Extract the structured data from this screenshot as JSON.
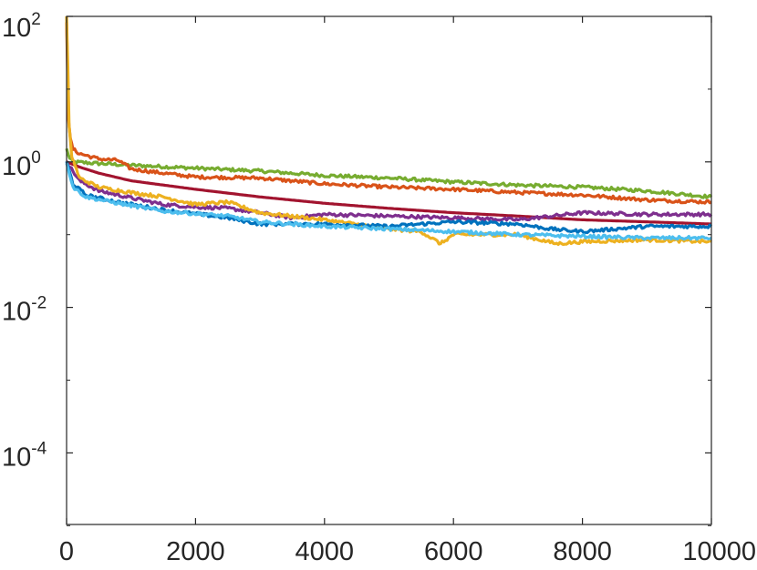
{
  "chart_data": {
    "type": "line",
    "title": "",
    "xlabel": "",
    "ylabel": "",
    "xlim": [
      0,
      10000
    ],
    "ylim_log10": [
      -5,
      2
    ],
    "yscale": "log",
    "grid": false,
    "box": true,
    "x_ticks": [
      0,
      2000,
      4000,
      6000,
      8000,
      10000
    ],
    "x_tick_labels": [
      "0",
      "2000",
      "4000",
      "6000",
      "8000",
      "10000"
    ],
    "y_ticks_log10": [
      -4,
      -2,
      0,
      2
    ],
    "y_tick_labels": [
      {
        "base": "10",
        "exp": "-4"
      },
      {
        "base": "10",
        "exp": "-2"
      },
      {
        "base": "10",
        "exp": "0"
      },
      {
        "base": "10",
        "exp": "2"
      }
    ],
    "series": [
      {
        "color": "#77AC30",
        "points": [
          [
            0,
            1.5
          ],
          [
            50,
            1.1
          ],
          [
            100,
            1.0
          ],
          [
            500,
            0.95
          ],
          [
            1000,
            0.9
          ],
          [
            2000,
            0.82
          ],
          [
            3000,
            0.75
          ],
          [
            4000,
            0.65
          ],
          [
            5000,
            0.6
          ],
          [
            6000,
            0.53
          ],
          [
            7000,
            0.48
          ],
          [
            8000,
            0.45
          ],
          [
            9000,
            0.4
          ],
          [
            10000,
            0.33
          ]
        ]
      },
      {
        "color": "#D95319",
        "points": [
          [
            0,
            80
          ],
          [
            30,
            4
          ],
          [
            60,
            2
          ],
          [
            100,
            1.5
          ],
          [
            200,
            1.3
          ],
          [
            500,
            1.1
          ],
          [
            800,
            1.05
          ],
          [
            1000,
            0.8
          ],
          [
            1500,
            0.7
          ],
          [
            2000,
            0.62
          ],
          [
            3000,
            0.6
          ],
          [
            4000,
            0.5
          ],
          [
            5000,
            0.45
          ],
          [
            6000,
            0.42
          ],
          [
            7000,
            0.38
          ],
          [
            8000,
            0.35
          ],
          [
            9000,
            0.3
          ],
          [
            10000,
            0.28
          ]
        ]
      },
      {
        "color": "#A2142F",
        "points": [
          [
            0,
            1.0
          ],
          [
            200,
            0.85
          ],
          [
            500,
            0.7
          ],
          [
            1000,
            0.55
          ],
          [
            2000,
            0.42
          ],
          [
            3000,
            0.33
          ],
          [
            4000,
            0.27
          ],
          [
            5000,
            0.23
          ],
          [
            6000,
            0.2
          ],
          [
            7000,
            0.18
          ],
          [
            8000,
            0.16
          ],
          [
            9000,
            0.15
          ],
          [
            10000,
            0.14
          ]
        ]
      },
      {
        "color": "#7E2F8E",
        "points": [
          [
            0,
            1.0
          ],
          [
            200,
            0.55
          ],
          [
            500,
            0.4
          ],
          [
            1000,
            0.32
          ],
          [
            1500,
            0.26
          ],
          [
            2000,
            0.24
          ],
          [
            2500,
            0.23
          ],
          [
            3000,
            0.2
          ],
          [
            3500,
            0.17
          ],
          [
            4000,
            0.19
          ],
          [
            5000,
            0.18
          ],
          [
            6000,
            0.17
          ],
          [
            7000,
            0.16
          ],
          [
            8000,
            0.2
          ],
          [
            9000,
            0.19
          ],
          [
            10000,
            0.19
          ]
        ]
      },
      {
        "color": "#EDB120",
        "points": [
          [
            0,
            100
          ],
          [
            20,
            20
          ],
          [
            40,
            3
          ],
          [
            80,
            1.2
          ],
          [
            200,
            0.6
          ],
          [
            500,
            0.45
          ],
          [
            1000,
            0.38
          ],
          [
            1500,
            0.33
          ],
          [
            2000,
            0.26
          ],
          [
            2500,
            0.28
          ],
          [
            3000,
            0.2
          ],
          [
            4000,
            0.16
          ],
          [
            5000,
            0.12
          ],
          [
            5500,
            0.11
          ],
          [
            5800,
            0.075
          ],
          [
            6000,
            0.1
          ],
          [
            7000,
            0.1
          ],
          [
            7600,
            0.075
          ],
          [
            8000,
            0.08
          ],
          [
            9000,
            0.085
          ],
          [
            10000,
            0.08
          ]
        ]
      },
      {
        "color": "#0072BD",
        "points": [
          [
            0,
            1.0
          ],
          [
            100,
            0.5
          ],
          [
            300,
            0.35
          ],
          [
            800,
            0.28
          ],
          [
            1500,
            0.22
          ],
          [
            2500,
            0.17
          ],
          [
            3000,
            0.14
          ],
          [
            4000,
            0.14
          ],
          [
            5000,
            0.13
          ],
          [
            5500,
            0.14
          ],
          [
            6000,
            0.15
          ],
          [
            7000,
            0.14
          ],
          [
            7500,
            0.12
          ],
          [
            8000,
            0.11
          ],
          [
            9000,
            0.13
          ],
          [
            10000,
            0.13
          ]
        ]
      },
      {
        "color": "#4DBEEE",
        "points": [
          [
            0,
            1.0
          ],
          [
            100,
            0.45
          ],
          [
            300,
            0.33
          ],
          [
            800,
            0.27
          ],
          [
            1500,
            0.21
          ],
          [
            2500,
            0.18
          ],
          [
            3000,
            0.15
          ],
          [
            4000,
            0.13
          ],
          [
            5000,
            0.12
          ],
          [
            6000,
            0.11
          ],
          [
            7000,
            0.1
          ],
          [
            8000,
            0.095
          ],
          [
            9000,
            0.09
          ],
          [
            10000,
            0.09
          ]
        ]
      }
    ]
  }
}
